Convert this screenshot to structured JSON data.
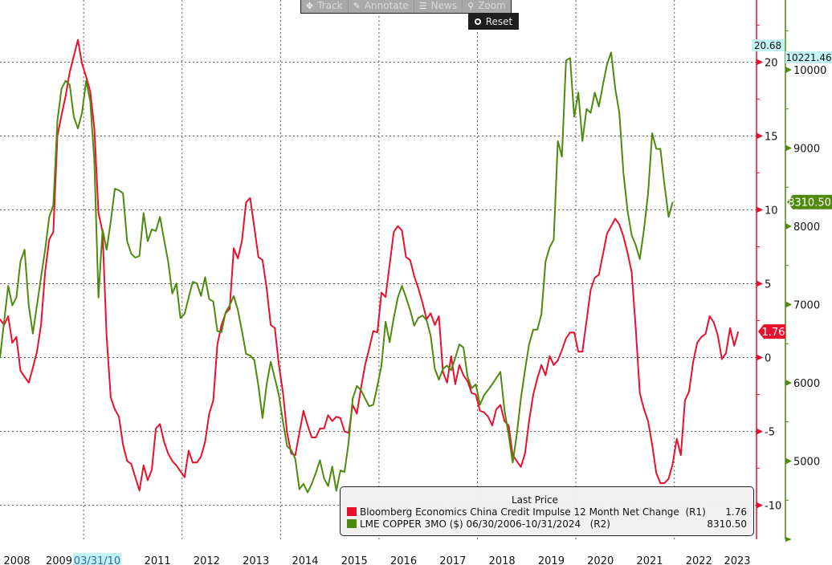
{
  "toolbar": {
    "track_label": "Track",
    "annotate_label": "Annotate",
    "news_label": "News",
    "zoom_label": "Zoom",
    "reset_label": "Reset"
  },
  "legend": {
    "title": "Last Price",
    "rows": [
      {
        "name": "Bloomberg Economics China Credit Impulse 12 Month Net Change  (R1)",
        "value": "1.76",
        "color": "#e8112d"
      },
      {
        "name": "LME COPPER 3MO ($) 06/30/2006-10/31/2024   (R2)",
        "value": "8310.50",
        "color": "#4e8a0e"
      }
    ]
  },
  "chart_data": {
    "type": "line",
    "title": "",
    "xlabel": "",
    "x_ticks": [
      "2008",
      "2009",
      "2010",
      "2011",
      "2012",
      "2013",
      "2014",
      "2015",
      "2016",
      "2017",
      "2018",
      "2019",
      "2020",
      "2021",
      "2022",
      "2023"
    ],
    "xlim": [
      2008.3,
      2023.67
    ],
    "crosshair_label": "03/31/10",
    "grid": true,
    "legend_position": "bottom-right",
    "series_start_year": 2008.3,
    "series_step": "monthly",
    "axes": {
      "R1": {
        "ylim": [
          -12.3,
          24.2
        ],
        "ticks": [
          20,
          15,
          10,
          5,
          0,
          -5,
          -10
        ],
        "minor_step": 2.5,
        "color": "#e8112d",
        "max_label": "20.68",
        "last_label": "1.76"
      },
      "R2": {
        "ylim": [
          4000,
          10892
        ],
        "ticks": [
          10000,
          9000,
          8000,
          7000,
          6000,
          5000
        ],
        "minor_step": 500,
        "color": "#4e8a0e",
        "max_label": "10221.46",
        "last_label": "8310.50"
      }
    },
    "series": [
      {
        "name": "Bloomberg Economics China Credit Impulse 12 Month Net Change",
        "axis": "R1",
        "color": "#e8112d",
        "values": [
          2.6,
          2.2,
          2.8,
          1.0,
          1.4,
          -0.9,
          -1.3,
          -1.7,
          -0.7,
          0.4,
          2.2,
          5.8,
          8.0,
          8.5,
          15.0,
          16.4,
          17.7,
          19.3,
          20.4,
          21.5,
          19.9,
          19.0,
          18.0,
          15.5,
          9.8,
          8.5,
          1.4,
          -2.7,
          -3.5,
          -4.0,
          -5.9,
          -7.0,
          -7.2,
          -8.1,
          -9.0,
          -7.3,
          -8.3,
          -7.6,
          -4.8,
          -4.5,
          -5.7,
          -6.5,
          -7.0,
          -7.3,
          -7.7,
          -8.1,
          -6.3,
          -7.1,
          -7.1,
          -6.7,
          -5.7,
          -3.8,
          -2.9,
          0.9,
          2.2,
          3.0,
          3.3,
          7.4,
          6.7,
          7.9,
          10.5,
          10.8,
          8.8,
          6.8,
          6.6,
          4.7,
          2.2,
          2.0,
          -0.5,
          -2.4,
          -5.1,
          -6.5,
          -6.6,
          -5.1,
          -3.6,
          -4.6,
          -5.4,
          -5.4,
          -4.8,
          -4.8,
          -3.9,
          -4.3,
          -4.0,
          -4.1,
          -5.0,
          -5.1,
          -3.2,
          -3.8,
          -2.1,
          -0.5,
          0.6,
          1.8,
          1.7,
          4.4,
          4.1,
          6.3,
          8.5,
          8.9,
          8.6,
          6.8,
          6.6,
          5.5,
          4.7,
          3.7,
          2.6,
          3.0,
          2.2,
          2.8,
          -1.0,
          -1.7,
          0.1,
          -1.8,
          -0.5,
          -1.2,
          -1.6,
          -2.4,
          -2.5,
          -3.6,
          -3.7,
          -4.0,
          -4.6,
          -3.5,
          -3.2,
          -4.3,
          -4.6,
          -6.6,
          -7.0,
          -7.4,
          -6.5,
          -4.3,
          -2.5,
          -1.4,
          -0.5,
          -1.2,
          0.1,
          -0.5,
          -0.2,
          0.5,
          1.3,
          1.7,
          1.7,
          0.4,
          0.4,
          2.5,
          4.6,
          5.4,
          5.6,
          7.0,
          8.4,
          8.9,
          9.4,
          9.0,
          8.2,
          7.1,
          5.8,
          2.0,
          -2.4,
          -3.5,
          -4.3,
          -5.9,
          -7.8,
          -8.5,
          -8.5,
          -8.2,
          -7.2,
          -5.5,
          -6.6,
          -2.9,
          -2.3,
          -0.3,
          1.0,
          1.4,
          1.6,
          2.8,
          2.4,
          1.5,
          -0.1,
          0.3,
          2.0,
          0.8,
          1.76
        ]
      },
      {
        "name": "LME COPPER 3MO ($)",
        "axis": "R2",
        "color": "#4e8a0e",
        "values": [
          6320,
          6780,
          7240,
          6990,
          7090,
          7550,
          7700,
          6990,
          6630,
          6990,
          7350,
          7700,
          8120,
          8270,
          9350,
          9760,
          9860,
          9810,
          9400,
          9250,
          9450,
          9860,
          9600,
          8830,
          7090,
          7960,
          7700,
          8060,
          8480,
          8460,
          8420,
          7810,
          7650,
          7600,
          7620,
          8170,
          7810,
          7960,
          7940,
          8120,
          7830,
          7550,
          7140,
          7270,
          6830,
          6880,
          7090,
          7290,
          7270,
          7110,
          7350,
          7070,
          7040,
          6660,
          6650,
          6900,
          6990,
          7110,
          6930,
          6660,
          6370,
          6350,
          6290,
          5960,
          5550,
          5980,
          6270,
          6060,
          5840,
          5500,
          5190,
          5140,
          5030,
          4640,
          4710,
          4600,
          4710,
          4850,
          5010,
          4780,
          4680,
          4930,
          4620,
          4880,
          4860,
          5240,
          5800,
          5960,
          5910,
          5800,
          5700,
          5720,
          5960,
          6220,
          6780,
          6520,
          6830,
          7090,
          7240,
          7090,
          6930,
          6730,
          6830,
          6860,
          6800,
          6600,
          6180,
          6040,
          6180,
          6220,
          6160,
          6320,
          6490,
          6450,
          6080,
          5930,
          5980,
          5720,
          5840,
          5910,
          5980,
          6060,
          6140,
          5650,
          5340,
          4980,
          5340,
          5800,
          6160,
          6490,
          6680,
          6680,
          6880,
          7550,
          7730,
          7830,
          9090,
          8890,
          10120,
          10150,
          9400,
          9710,
          9090,
          9500,
          9450,
          9710,
          9530,
          9810,
          10070,
          10221.46,
          9760,
          9450,
          8680,
          8200,
          7890,
          7760,
          7580,
          7960,
          8420,
          9190,
          8990,
          8990,
          8530,
          8120,
          8310.5
        ]
      }
    ]
  }
}
